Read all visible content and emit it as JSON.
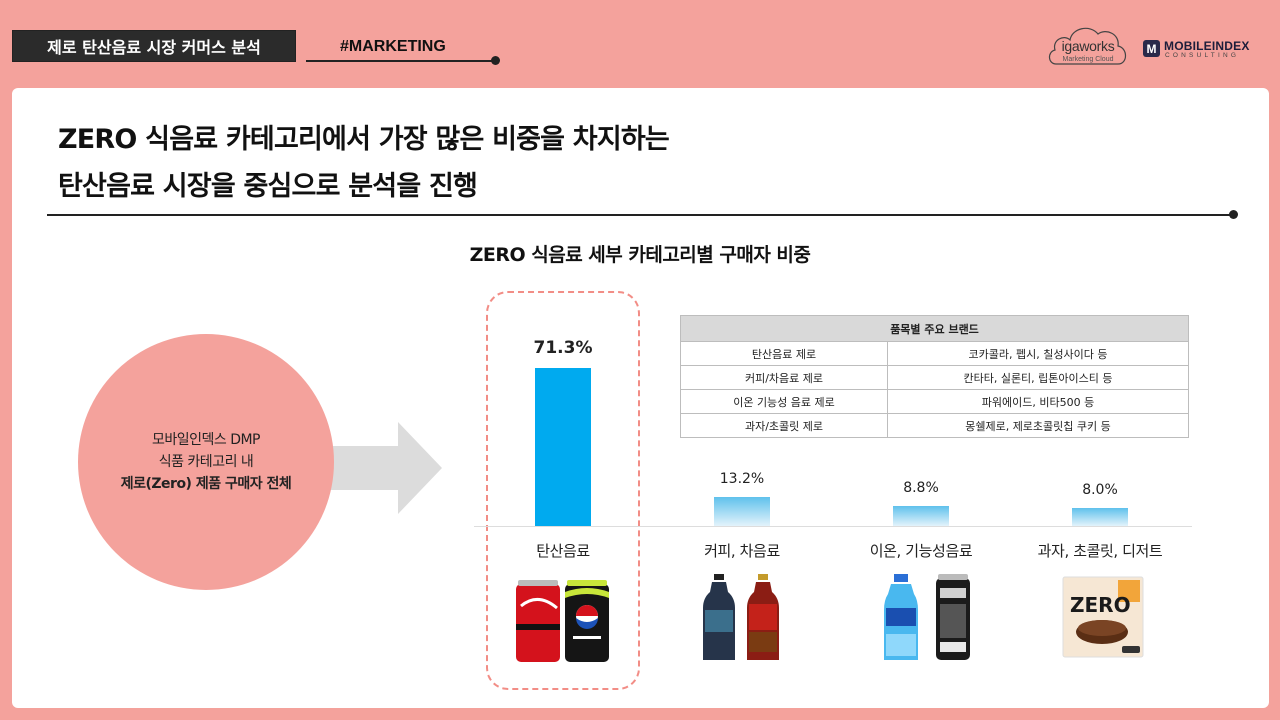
{
  "header": {
    "topic": "제로 탄산음료 시장 커머스 분석",
    "tag": "#MARKETING",
    "logo_igaworks": "igaworks",
    "logo_igaworks_sub": "Marketing Cloud",
    "logo_mobileindex": "MOBILEINDEX",
    "logo_mobileindex_sub": "CONSULTING",
    "logo_mobileindex_mark": "M"
  },
  "headline": {
    "line1": "ZERO 식음료 카테고리에서 가장 많은 비중을 차지하는",
    "line2": "탄산음료 시장을 중심으로 분석을 진행"
  },
  "source_circle": {
    "line1": "모바일인덱스 DMP",
    "line2": "식품 카테고리 내",
    "line3": "제로(Zero) 제품 구매자 전체"
  },
  "colors": {
    "background": "#f4a29c",
    "highlight_bar": "#00aaef",
    "minor_bar_top": "#5fc1ec",
    "minor_bar_bottom": "#e3f3fb",
    "dashed_highlight": "#f28d86"
  },
  "brand_table": {
    "title": "품목별 주요 브랜드",
    "rows": [
      {
        "category": "탄산음료 제로",
        "brands": "코카콜라, 펩시, 칠성사이다 등"
      },
      {
        "category": "커피/차음료 제로",
        "brands": "칸타타, 실론티, 립톤아이스티 등"
      },
      {
        "category": "이온 기능성 음료 제로",
        "brands": "파워에이드, 비타500 등"
      },
      {
        "category": "과자/초콜릿 제로",
        "brands": "몽쉘제로, 제로초콜릿칩 쿠키 등"
      }
    ]
  },
  "chart_data": {
    "type": "bar",
    "title": "ZERO 식음료 세부 카테고리별 구매자 비중",
    "categories": [
      "탄산음료",
      "커피, 차음료",
      "이온, 기능성음료",
      "과자, 초콜릿, 디저트"
    ],
    "values": [
      71.3,
      13.2,
      8.8,
      8.0
    ],
    "value_labels": [
      "71.3%",
      "13.2%",
      "8.8%",
      "8.0%"
    ],
    "unit": "%",
    "highlighted_category": "탄산음료",
    "ylim": [
      0,
      71.3
    ],
    "grid": false,
    "legend": "none"
  },
  "product_images": [
    {
      "category": "탄산음료",
      "items": [
        "Coca-Cola ZERO SUGAR can",
        "pepsi ZERO SUGAR can"
      ],
      "icon": "soda-cans-icon"
    },
    {
      "category": "커피, 차음료",
      "items": [
        "칸타타 bottle",
        "실론티 bottle"
      ],
      "icon": "tea-bottles-icon"
    },
    {
      "category": "이온, 기능성음료",
      "items": [
        "파워에이드 bottle",
        "핫식스 can"
      ],
      "icon": "sports-drinks-icon"
    },
    {
      "category": "과자, 초콜릿, 디저트",
      "items": [
        "몽쉘 ZERO box"
      ],
      "icon": "snack-box-icon"
    }
  ]
}
